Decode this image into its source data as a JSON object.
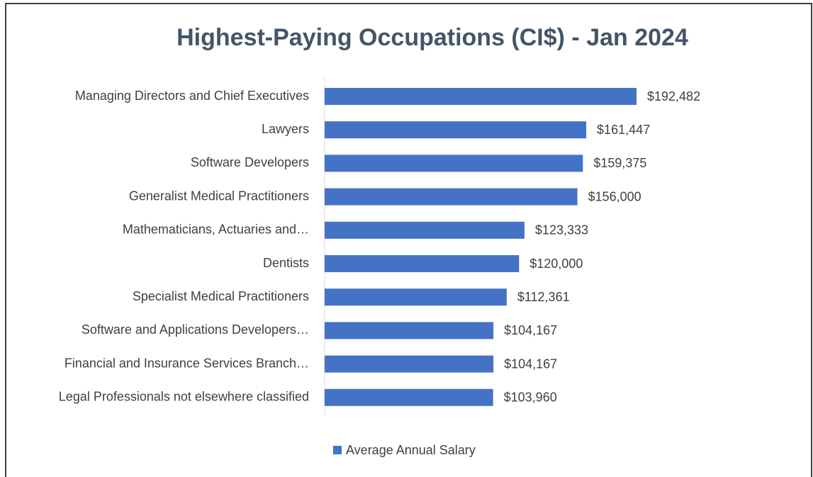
{
  "chart_data": {
    "type": "bar",
    "orientation": "horizontal",
    "title": "Highest-Paying Occupations (CI$) - Jan 2024",
    "categories": [
      "Managing Directors and Chief Executives",
      "Lawyers",
      "Software Developers",
      "Generalist Medical Practitioners",
      "Mathematicians, Actuaries and…",
      "Dentists",
      "Specialist Medical Practitioners",
      "Software and Applications Developers…",
      "Financial and Insurance Services Branch…",
      "Legal Professionals not elsewhere classified"
    ],
    "series": [
      {
        "name": "Average Annual Salary",
        "color": "#4472c4",
        "values": [
          192482,
          161447,
          159375,
          156000,
          123333,
          120000,
          112361,
          104167,
          104167,
          103960
        ],
        "value_labels": [
          "$192,482",
          "$161,447",
          "$159,375",
          "$156,000",
          "$123,333",
          "$120,000",
          "$112,361",
          "$104,167",
          "$104,167",
          "$103,960"
        ]
      }
    ],
    "legend": "bottom"
  }
}
